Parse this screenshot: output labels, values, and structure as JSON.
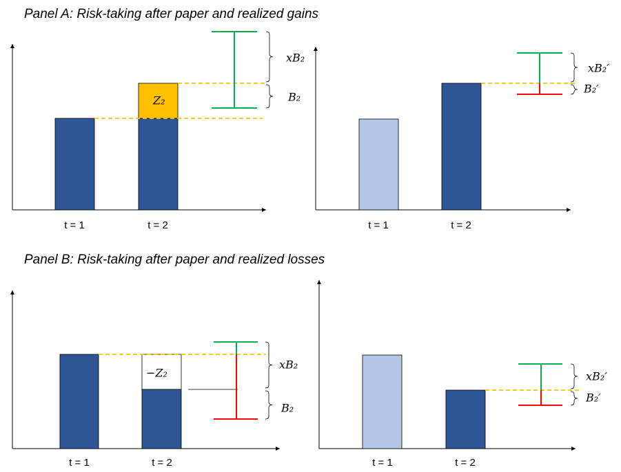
{
  "panels": [
    {
      "title": "Panel A: Risk-taking after paper and realized gains",
      "charts": [
        {
          "ticks": [
            "t = 1",
            "t = 2"
          ],
          "bar_label": "Z₂",
          "labels": [
            "xB₂",
            "B₂"
          ]
        },
        {
          "ticks": [
            "t = 1",
            "t = 2"
          ],
          "labels": [
            "xB₂′",
            "B₂′"
          ]
        }
      ]
    },
    {
      "title": "Panel B: Risk-taking after paper and realized losses",
      "charts": [
        {
          "ticks": [
            "t = 1",
            "t = 2"
          ],
          "bar_label": "−Z₂",
          "labels": [
            "xB₂",
            "B₂"
          ]
        },
        {
          "ticks": [
            "t = 1",
            "t = 2"
          ],
          "labels": [
            "xB₂′",
            "B₂′"
          ]
        }
      ]
    }
  ]
}
